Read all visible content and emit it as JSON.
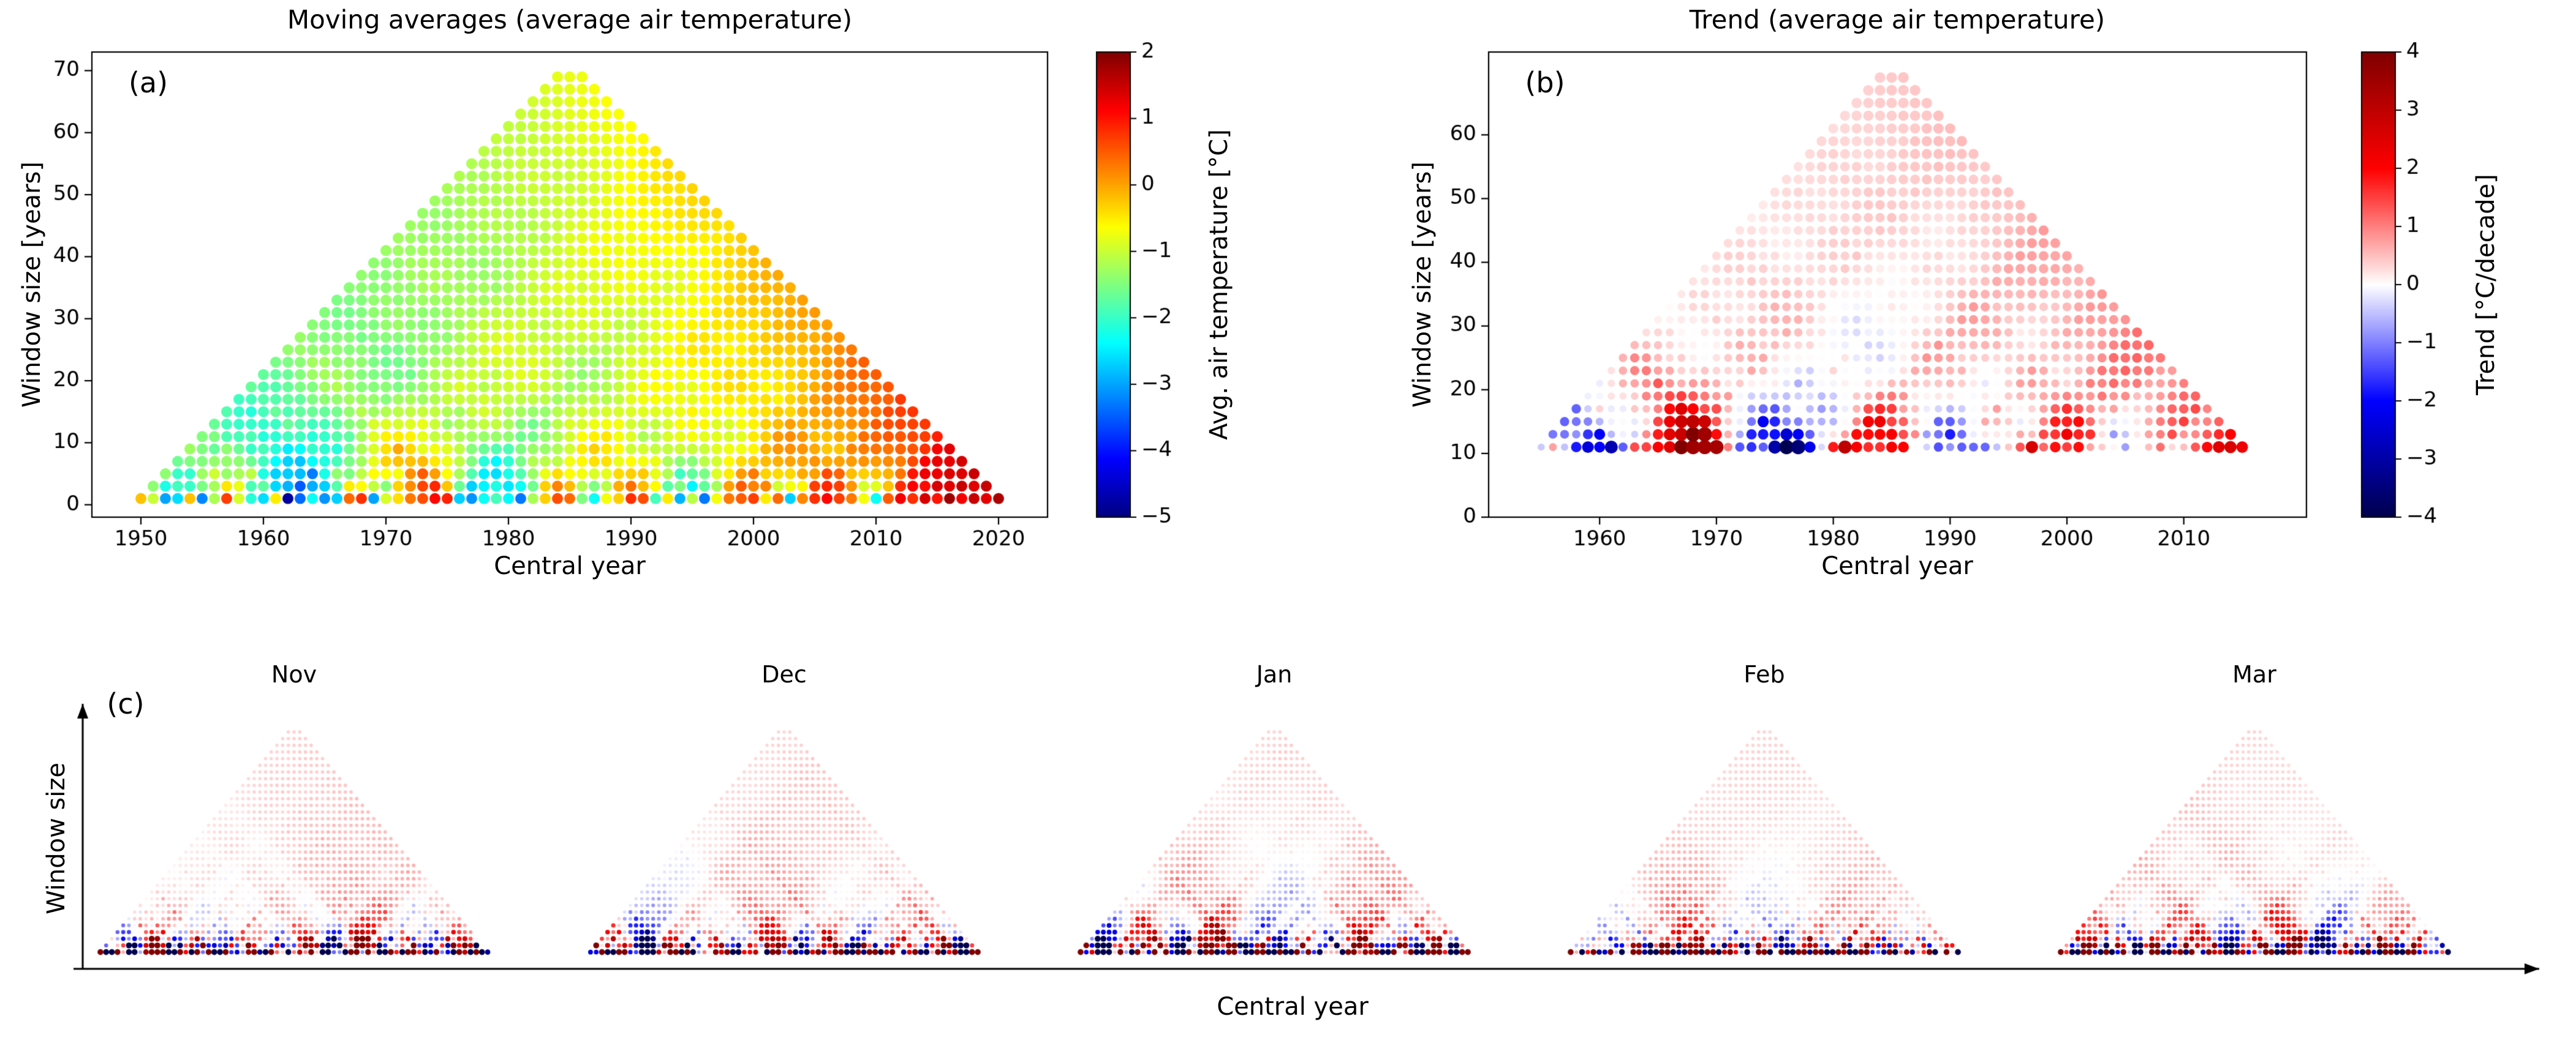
{
  "panels": {
    "a": {
      "letter": "(a)",
      "title": "Moving averages (average air temperature)",
      "xlabel": "Central year",
      "ylabel": "Window size [years]",
      "colorbar_label": "Avg. air temperature [°C]"
    },
    "b": {
      "letter": "(b)",
      "title": "Trend (average air temperature)",
      "xlabel": "Central year",
      "ylabel": "Window size [years]",
      "colorbar_label": "Trend [°C/decade]"
    },
    "c": {
      "letter": "(c)",
      "xlabel": "Central year",
      "ylabel": "Window size",
      "months": [
        "Nov",
        "Dec",
        "Jan",
        "Feb",
        "Mar"
      ]
    }
  },
  "chart_data": [
    {
      "type": "scatter",
      "panel": "a",
      "title": "Moving averages (average air temperature)",
      "xlabel": "Central year",
      "ylabel": "Window size [years]",
      "xlim": [
        1946,
        2024
      ],
      "ylim": [
        -2,
        73
      ],
      "x_ticks": [
        1950,
        1960,
        1970,
        1980,
        1990,
        2000,
        2010,
        2020
      ],
      "y_ticks": [
        0,
        10,
        20,
        30,
        40,
        50,
        60,
        70
      ],
      "colorbar": {
        "label": "Avg. air temperature [°C]",
        "cmap": "jet",
        "vmin": -5,
        "vmax": 2,
        "ticks": [
          -5,
          -4,
          -3,
          -2,
          -1,
          0,
          1,
          2
        ]
      },
      "years_start": 1950,
      "years_end": 2020,
      "annual_mean_temperature": [
        -0.2,
        -1.0,
        -3.0,
        -2.6,
        -0.2,
        -3.2,
        -1.2,
        0.7,
        -0.9,
        -2.1,
        -2.6,
        -0.5,
        -4.8,
        -3.4,
        -2.3,
        -3.1,
        -2.7,
        0.4,
        0.8,
        -3.0,
        -0.9,
        -0.4,
        0.3,
        0.6,
        1.1,
        0.9,
        -2.7,
        -3.1,
        -2.3,
        -1.9,
        -2.4,
        -3.3,
        -1.2,
        -0.3,
        0.6,
        0.4,
        -1.5,
        -2.3,
        -0.7,
        -0.3,
        0.8,
        0.6,
        -1.9,
        -0.5,
        -2.9,
        -1.1,
        -3.3,
        -0.7,
        0.3,
        0.5,
        0.7,
        -0.5,
        0.4,
        -2.7,
        0.2,
        0.8,
        1.1,
        0.7,
        0.3,
        -0.7,
        -2.3,
        0.5,
        1.2,
        0.8,
        1.4,
        1.0,
        1.8,
        1.2,
        1.5,
        1.3,
        1.7
      ],
      "window_sizes": {
        "min": 1,
        "max": 69,
        "step": 2
      },
      "value_definition": "dot color = mean of annual air-temperature series over the window centred at the central year"
    },
    {
      "type": "scatter",
      "panel": "b",
      "title": "Trend (average air temperature)",
      "xlabel": "Central year",
      "ylabel": "Window size [years]",
      "xlim": [
        1950.5,
        2020.5
      ],
      "ylim": [
        0,
        73
      ],
      "x_ticks": [
        1960,
        1970,
        1980,
        1990,
        2000,
        2010
      ],
      "y_ticks": [
        0,
        10,
        20,
        30,
        40,
        50,
        60
      ],
      "colorbar": {
        "label": "Trend [°C/decade]",
        "cmap": "seismic",
        "vmin": -4,
        "vmax": 4,
        "ticks": [
          -4,
          -3,
          -2,
          -1,
          0,
          1,
          2,
          3,
          4
        ]
      },
      "window_sizes": {
        "min": 11,
        "max": 69,
        "step": 2
      },
      "value_definition": "dot color = linear trend (°C/decade) of the same annual series over the window; marker size grows with |trend| and window length"
    },
    {
      "type": "scatter",
      "panel": "c",
      "xlabel": "Central year",
      "ylabel": "Window size",
      "years_start": 1950,
      "years_end": 2020,
      "window_sizes": {
        "min": 3,
        "max": 69,
        "step": 2
      },
      "colorbar": {
        "cmap": "seismic",
        "vmin": -4,
        "vmax": 4
      },
      "months": [
        {
          "name": "Nov",
          "seed": 11
        },
        {
          "name": "Dec",
          "seed": 12
        },
        {
          "name": "Jan",
          "seed": 1
        },
        {
          "name": "Feb",
          "seed": 2
        },
        {
          "name": "Mar",
          "seed": 3
        }
      ],
      "value_definition": "per-month trend triangles (°C/decade), same construction as panel b but for monthly series"
    }
  ]
}
